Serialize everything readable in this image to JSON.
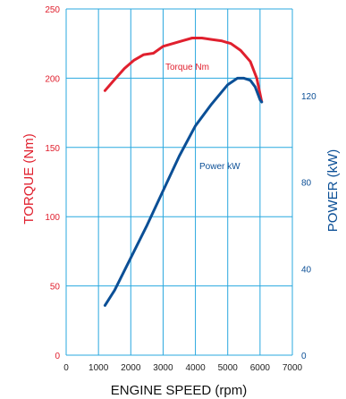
{
  "chart_data": {
    "type": "line",
    "xlabel": "ENGINE SPEED (rpm)",
    "ylabel_left": "TORQUE (Nm)",
    "ylabel_right": "POWER (kW)",
    "xlim": [
      0,
      7000
    ],
    "ylim_left": [
      0,
      250
    ],
    "ylim_right": [
      0,
      160
    ],
    "x_ticks": [
      "0",
      "1000",
      "2000",
      "3000",
      "4000",
      "5000",
      "6000",
      "7000"
    ],
    "y_left_ticks": [
      "0",
      "50",
      "100",
      "150",
      "200",
      "250"
    ],
    "y_right_ticks": [
      "0",
      "40",
      "80",
      "120"
    ],
    "grid": true,
    "colors": {
      "torque": "#e0202e",
      "power": "#0b4f96",
      "grid": "#29a8df",
      "axis_text": "#0b4f96"
    },
    "series": [
      {
        "name": "Torque Nm",
        "axis": "left",
        "x": [
          1200,
          1500,
          1800,
          2100,
          2400,
          2700,
          3000,
          3300,
          3600,
          3900,
          4200,
          4500,
          4800,
          5100,
          5400,
          5700,
          5900,
          6050
        ],
        "values": [
          191,
          199,
          207,
          213,
          217,
          218,
          223,
          225,
          227,
          229,
          229,
          228,
          227,
          225,
          220,
          212,
          200,
          183
        ]
      },
      {
        "name": "Power kW",
        "axis": "right",
        "x": [
          1200,
          1500,
          2000,
          2500,
          3000,
          3500,
          4000,
          4500,
          5000,
          5300,
          5500,
          5700,
          5850,
          6000,
          6050
        ],
        "values": [
          23,
          30,
          45,
          60,
          76,
          92,
          106,
          116,
          125,
          128,
          128,
          127,
          124,
          118,
          117
        ]
      }
    ]
  }
}
